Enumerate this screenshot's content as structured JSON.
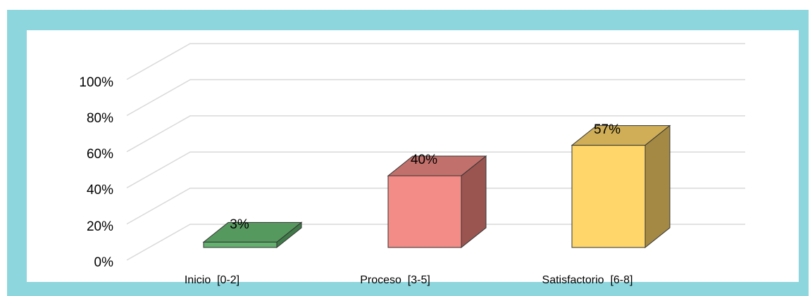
{
  "chart_data": {
    "type": "bar",
    "categories": [
      "Inicio  [0-2]",
      "Proceso  [3-5]",
      "Satisfactorio  [6-8]"
    ],
    "values": [
      3,
      40,
      57
    ],
    "data_labels": [
      "3%",
      "40%",
      "57%"
    ],
    "y_ticks": [
      "0%",
      "20%",
      "40%",
      "60%",
      "80%",
      "100%"
    ],
    "ylim": [
      0,
      100
    ],
    "grid": true,
    "style": "3d",
    "colors": {
      "front": [
        "#63b06f",
        "#f38b86",
        "#fed669"
      ],
      "top": [
        "#56995f",
        "#c2706b",
        "#cfae57"
      ],
      "side": [
        "#3f7a48",
        "#9a5550",
        "#a48944"
      ],
      "frame": "#8ed6dd"
    }
  }
}
